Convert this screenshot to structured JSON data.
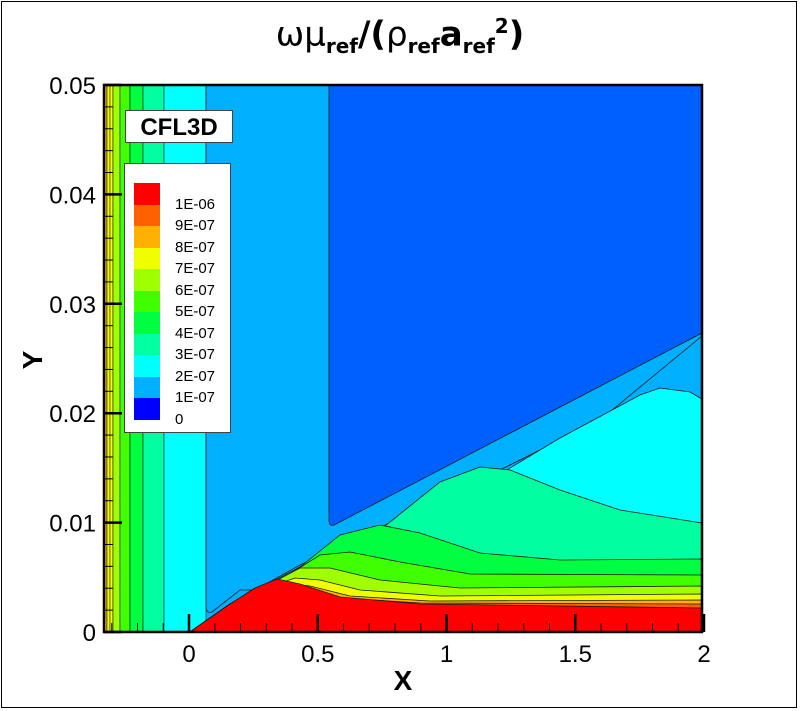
{
  "title": {
    "symbol_omega": "ω",
    "symbol_mu": "μ",
    "sub_ref1": "ref",
    "slash_paren": "/(",
    "symbol_rho": "ρ",
    "sub_ref2": "ref",
    "symbol_a": "a",
    "sub_ref3": "ref",
    "sup_2": "2",
    "close_paren": ")"
  },
  "badge": "CFL3D",
  "chart_data": {
    "type": "contour",
    "title": "ωμ_ref/(ρ_ref a_ref^2)",
    "xlabel": "X",
    "ylabel": "Y",
    "xlim": [
      -0.33,
      2.0
    ],
    "ylim": [
      0,
      0.05
    ],
    "xticks": [
      "0",
      "0.5",
      "1",
      "1.5",
      "2"
    ],
    "yticks": [
      "0",
      "0.01",
      "0.02",
      "0.03",
      "0.04",
      "0.05"
    ],
    "grid": false,
    "legend_position": "upper-left inside",
    "levels": [
      {
        "label": "1E-06",
        "value": 1e-06,
        "color": "#ff0000"
      },
      {
        "label": "9E-07",
        "value": 9e-07,
        "color": "#ff6000"
      },
      {
        "label": "8E-07",
        "value": 8e-07,
        "color": "#ffb000"
      },
      {
        "label": "7E-07",
        "value": 7e-07,
        "color": "#f0ff00"
      },
      {
        "label": "6E-07",
        "value": 6e-07,
        "color": "#a0ff00"
      },
      {
        "label": "5E-07",
        "value": 5e-07,
        "color": "#40ff00"
      },
      {
        "label": "4E-07",
        "value": 4e-07,
        "color": "#00ff40"
      },
      {
        "label": "3E-07",
        "value": 3e-07,
        "color": "#00ffa0"
      },
      {
        "label": "2E-07",
        "value": 2e-07,
        "color": "#00ffff"
      },
      {
        "label": "1E-07",
        "value": 1e-07,
        "color": "#00b0ff"
      },
      {
        "label": "0",
        "value": 0,
        "color": "#0060ff"
      }
    ],
    "bottom_swatch_color": "#0000ff",
    "features": {
      "shock_start_x": 0.0,
      "red_peak": {
        "x": 0.35,
        "y": 0.005
      },
      "green_5e-07_peak": {
        "x": 0.7,
        "y": 0.0095
      },
      "teal_3e-07_peak": {
        "x": 1.2,
        "y": 0.015
      },
      "cyan_2e-07_peak": {
        "x": 1.8,
        "y": 0.022
      },
      "low_region_boundary_x": 0.55,
      "freestream_edge_at_x2": 0.027
    }
  }
}
